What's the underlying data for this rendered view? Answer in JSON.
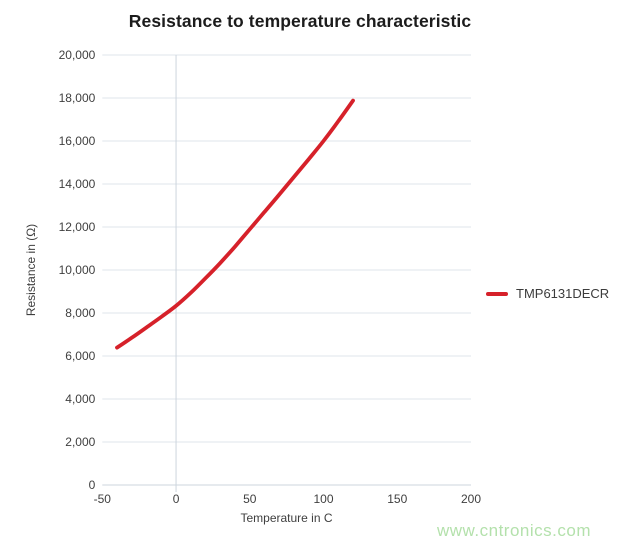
{
  "watermark": "www.cntronics.com",
  "chart_data": {
    "type": "line",
    "title": "Resistance to temperature characteristic",
    "xlabel": "Temperature in C",
    "ylabel": "Resistance in (Ω)",
    "xlim": [
      -50,
      200
    ],
    "ylim": [
      0,
      20000
    ],
    "x_ticks": [
      -50,
      0,
      50,
      100,
      150,
      200
    ],
    "x_tick_labels": [
      "-50",
      "0",
      "50",
      "100",
      "150",
      "200"
    ],
    "y_ticks": [
      0,
      2000,
      4000,
      6000,
      8000,
      10000,
      12000,
      14000,
      16000,
      18000,
      20000
    ],
    "y_tick_labels": [
      "0",
      "2,000",
      "4,000",
      "6,000",
      "8,000",
      "10,000",
      "12,000",
      "14,000",
      "16,000",
      "18,000",
      "20,000"
    ],
    "grid": {
      "horizontal": true,
      "vertical_only_at_x": 0
    },
    "legend": {
      "position": "right",
      "entries": [
        {
          "label": "TMP6131DECR",
          "color": "#d6212a"
        }
      ]
    },
    "series": [
      {
        "name": "TMP6131DECR",
        "color": "#d6212a",
        "points": [
          [
            -40,
            6390
          ],
          [
            -30,
            6850
          ],
          [
            -20,
            7330
          ],
          [
            -10,
            7820
          ],
          [
            0,
            8330
          ],
          [
            10,
            8940
          ],
          [
            20,
            9620
          ],
          [
            30,
            10330
          ],
          [
            40,
            11090
          ],
          [
            50,
            11900
          ],
          [
            60,
            12700
          ],
          [
            70,
            13510
          ],
          [
            80,
            14330
          ],
          [
            90,
            15160
          ],
          [
            100,
            16000
          ],
          [
            110,
            16920
          ],
          [
            120,
            17880
          ]
        ]
      }
    ],
    "colors": {
      "gridline": "#dfe5eb",
      "axis_line": "#ccd5dd",
      "tick_text": "#3f3f3f",
      "title_text": "#1c1c1c",
      "watermark": "#b4e1ac",
      "background": "#ffffff"
    }
  }
}
